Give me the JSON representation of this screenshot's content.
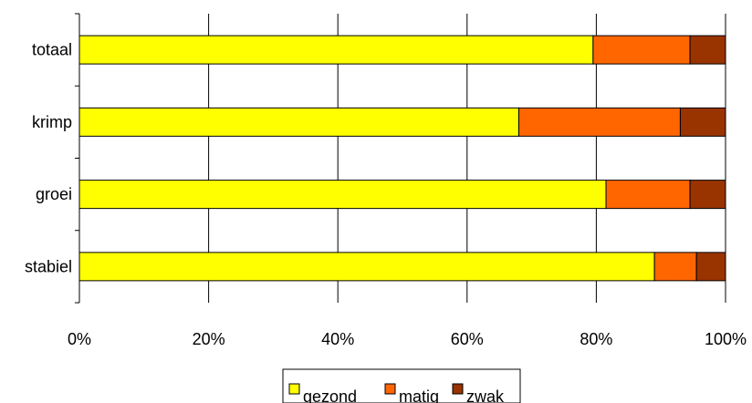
{
  "chart_data": {
    "type": "bar",
    "orientation": "horizontal",
    "stacked": "percent",
    "title": "",
    "xlabel": "",
    "ylabel": "",
    "categories": [
      "totaal",
      "krimp",
      "groei",
      "stabiel"
    ],
    "series": [
      {
        "name": "gezond",
        "color": "#FFFF00",
        "values": [
          79.5,
          68,
          81.5,
          89
        ]
      },
      {
        "name": "matig",
        "color": "#FF6600",
        "values": [
          15,
          25,
          13,
          6.5
        ]
      },
      {
        "name": "zwak",
        "color": "#993300",
        "values": [
          5.5,
          7,
          5.5,
          4.5
        ]
      }
    ],
    "xlim": [
      0,
      100
    ],
    "x_ticks": [
      "0%",
      "20%",
      "40%",
      "60%",
      "80%",
      "100%"
    ],
    "x_tick_values": [
      0,
      20,
      40,
      60,
      80,
      100
    ],
    "grid": "vertical",
    "legend": "bottom"
  }
}
